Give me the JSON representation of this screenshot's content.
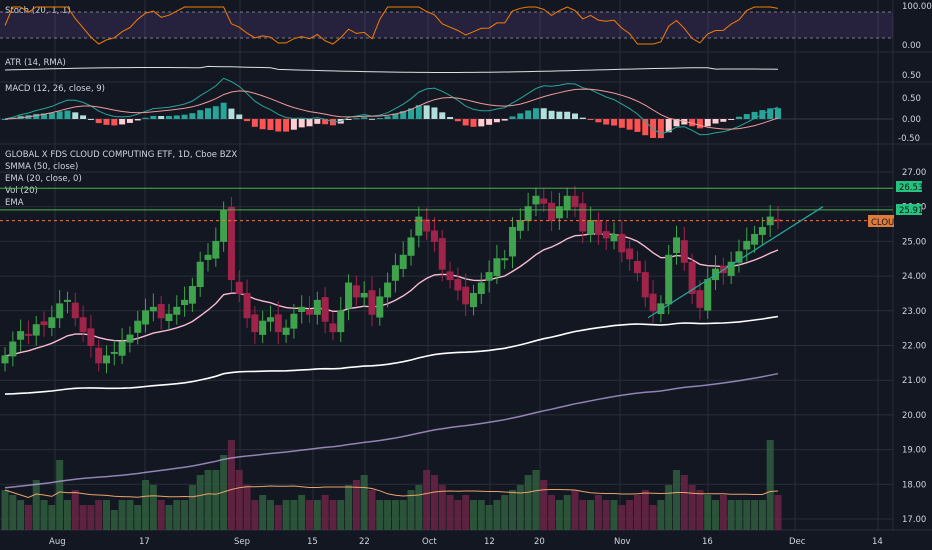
{
  "colors": {
    "background": "#131722",
    "up": "#26a69a",
    "down": "#ef5350",
    "up_candle": "#3fa34d",
    "down_candle": "#a0244a",
    "grid": "#2a2e39",
    "stoch_line": "#f57c00",
    "macd_line": "#26a69a",
    "signal_line": "#ef9a9a",
    "ema20": "#f8bbd0",
    "smma50": "#ffffff",
    "ema_long": "#b39ddb",
    "hline": "#4caf50",
    "trendline": "#26a69a",
    "price_line": "#ff7043"
  },
  "panes": {
    "stoch": {
      "label": "Stoch (20, 1, 1)",
      "ticks": [
        "100.00",
        "0.00"
      ]
    },
    "atr": {
      "label": "ATR (14, RMA)",
      "ticks": [
        "0.50"
      ]
    },
    "macd": {
      "label": "MACD (12, 26, close, 9)",
      "ticks": [
        "0.50",
        "0.00",
        "-0.50"
      ]
    },
    "price": {
      "title": "GLOBAL X FDS CLOUD COMPUTING ETF, 1D, Cboe BZX",
      "indicators": [
        "SMMA (50, close)",
        "EMA (20, close, 0)",
        "Vol (20)",
        "EMA"
      ],
      "ticks": [
        "27.00",
        "26.00",
        "25.00",
        "24.00",
        "23.00",
        "22.00",
        "21.00",
        "20.00",
        "19.00",
        "18.00",
        "17.00"
      ],
      "tags": {
        "level_1": "26.53",
        "level_2": "25.91",
        "symbol": "CLOU"
      }
    }
  },
  "x_axis": {
    "labels": [
      "Aug",
      "17",
      "Sep",
      "15",
      "22",
      "Oct",
      "12",
      "20",
      "Nov",
      "16",
      "Dec",
      "14"
    ]
  },
  "chart_data": {
    "type": "candlestick",
    "title": "GLOBAL X FDS CLOUD COMPUTING ETF, 1D, Cboe BZX",
    "symbol": "CLOU",
    "y_range": [
      16.8,
      27.3
    ],
    "horizontal_levels": [
      26.53,
      25.91
    ],
    "last_price": 25.6,
    "closes": [
      21.7,
      22.1,
      22.4,
      22.3,
      22.6,
      22.6,
      22.8,
      23.2,
      23.3,
      22.8,
      22.4,
      22.0,
      21.5,
      21.7,
      21.8,
      22.1,
      22.3,
      22.7,
      23.0,
      23.1,
      22.8,
      22.9,
      23.1,
      23.3,
      23.7,
      24.4,
      24.6,
      25.0,
      25.9,
      23.9,
      23.5,
      22.8,
      22.4,
      22.7,
      22.8,
      22.4,
      22.5,
      22.9,
      23.1,
      22.9,
      23.3,
      22.7,
      22.4,
      23.0,
      23.8,
      23.4,
      23.5,
      22.9,
      23.4,
      23.8,
      24.3,
      24.6,
      25.1,
      25.7,
      25.3,
      25.0,
      24.2,
      23.9,
      23.6,
      23.2,
      23.5,
      23.8,
      24.1,
      24.5,
      24.5,
      25.4,
      25.6,
      26.0,
      26.3,
      26.1,
      25.6,
      26.0,
      26.3,
      26.0,
      25.3,
      25.6,
      25.2,
      25.1,
      25.2,
      24.7,
      24.5,
      24.1,
      23.4,
      23.0,
      23.2,
      24.6,
      25.1,
      24.4,
      23.5,
      23.1,
      23.9,
      24.2,
      24.1,
      24.4,
      24.7,
      25.0,
      25.2,
      25.4,
      25.7,
      25.6
    ],
    "volume_scale": [
      0.4,
      0.35,
      0.3,
      0.25,
      0.5,
      0.3,
      0.25,
      0.7,
      0.3,
      0.4,
      0.25,
      0.25,
      0.3,
      0.3,
      0.2,
      0.3,
      0.3,
      0.25,
      0.5,
      0.45,
      0.3,
      0.25,
      0.3,
      0.3,
      0.45,
      0.55,
      0.6,
      0.6,
      0.75,
      0.9,
      0.6,
      0.45,
      0.3,
      0.35,
      0.3,
      0.25,
      0.3,
      0.3,
      0.35,
      0.3,
      0.3,
      0.35,
      0.3,
      0.3,
      0.45,
      0.5,
      0.55,
      0.4,
      0.3,
      0.3,
      0.3,
      0.3,
      0.4,
      0.45,
      0.6,
      0.55,
      0.45,
      0.35,
      0.3,
      0.35,
      0.3,
      0.3,
      0.25,
      0.3,
      0.35,
      0.4,
      0.45,
      0.55,
      0.6,
      0.5,
      0.35,
      0.3,
      0.35,
      0.4,
      0.3,
      0.3,
      0.35,
      0.3,
      0.3,
      0.25,
      0.3,
      0.35,
      0.4,
      0.25,
      0.3,
      0.45,
      0.6,
      0.55,
      0.45,
      0.4,
      0.35,
      0.3,
      0.35,
      0.3,
      0.3,
      0.3,
      0.3,
      0.3,
      0.9,
      0.35
    ]
  }
}
